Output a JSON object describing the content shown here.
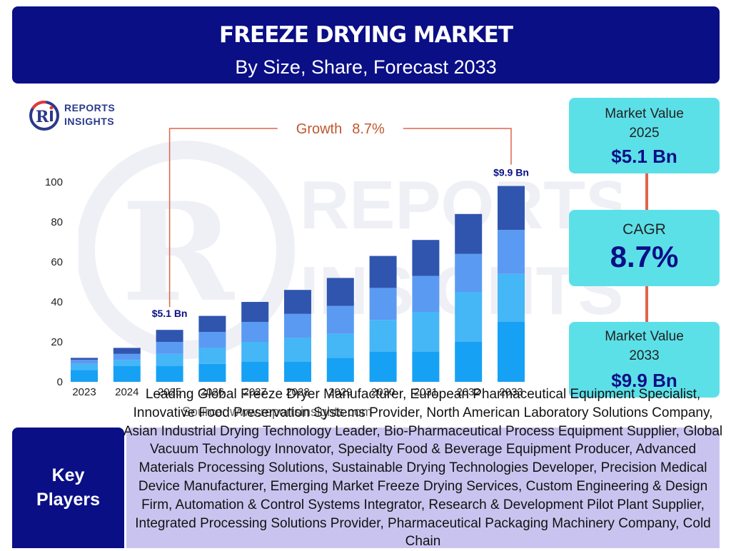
{
  "header": {
    "title": "FREEZE DRYING MARKET",
    "subtitle": "By Size, Share, Forecast 2033"
  },
  "logo": {
    "line1": "REPORTS",
    "line2": "INSIGHTS",
    "watermark_line1": "REPORTS",
    "watermark_line2": "INSIGHTS"
  },
  "chart_data": {
    "type": "bar",
    "stacked": true,
    "categories": [
      "2023",
      "2024",
      "2025",
      "2026",
      "2027",
      "2028",
      "2029",
      "2030",
      "2031",
      "2032",
      "2033"
    ],
    "series": [
      {
        "values": [
          6,
          8,
          8,
          9,
          10,
          10,
          12,
          15,
          15,
          20,
          30
        ],
        "color": "#16a1f4"
      },
      {
        "values": [
          3,
          3,
          6,
          8,
          10,
          12,
          12,
          16,
          20,
          25,
          24
        ],
        "color": "#45b6f6"
      },
      {
        "values": [
          2,
          3,
          6,
          8,
          10,
          12,
          14,
          16,
          18,
          19,
          22
        ],
        "color": "#5a9af3"
      },
      {
        "values": [
          1,
          3,
          6,
          8,
          10,
          12,
          14,
          16,
          18,
          20,
          22
        ],
        "color": "#2f55ae"
      }
    ],
    "yticks": [
      0,
      20,
      40,
      60,
      80,
      100
    ],
    "ylim": [
      0,
      100
    ],
    "annotations": {
      "start_label": "$5.1 Bn",
      "end_label": "$9.9 Bn",
      "growth_label": "Growth",
      "growth_value": "8.7%",
      "start_category": "2025",
      "end_category": "2033"
    },
    "grid": false
  },
  "kpis": {
    "market_value_2025": {
      "label_line1": "Market Value",
      "label_line2": "2025",
      "value": "$5.1 Bn"
    },
    "cagr": {
      "label": "CAGR",
      "value": "8.7%"
    },
    "market_value_2033": {
      "label_line1": "Market Value",
      "label_line2": "2033",
      "value": "$9.9 Bn"
    }
  },
  "key_players": {
    "label_line1": "Key",
    "label_line2": "Players",
    "text": "Leading Global Freeze Dryer Manufacturer, European Pharmaceutical Equipment Specialist, Innovative Food Preservation Systems Provider, North American Laboratory Solutions Company, Asian Industrial Drying Technology Leader, Bio-Pharmaceutical Process Equipment Supplier, Global Vacuum Technology Innovator, Specialty Food & Beverage Equipment Producer, Advanced Materials Processing Solutions, Sustainable Drying Technologies Developer, Precision Medical Device Manufacturer, Emerging Market Freeze Drying Services, Custom Engineering & Design Firm, Automation & Control Systems Integrator, Research & Development Pilot Plant Supplier, Integrated Processing Solutions Provider, Pharmaceutical Packaging Machinery Company, Cold Chain"
  },
  "source": "Source: www.reportsinsights.com",
  "colors": {
    "header_bg": "#0a0f86",
    "kpi_bg": "#5ce0e8",
    "players_bg": "#c9c4ef",
    "connector": "#e0644a",
    "growth_text": "#c0582f"
  }
}
